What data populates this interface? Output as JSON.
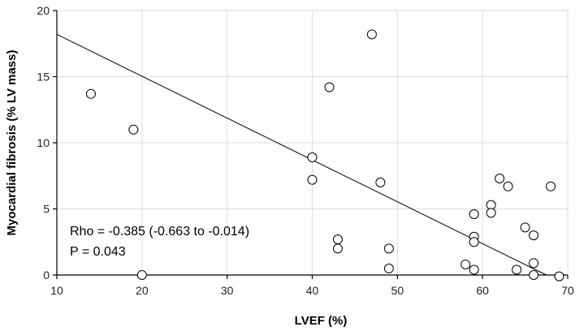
{
  "chart_data": {
    "type": "scatter",
    "title": "",
    "xlabel": "LVEF (%)",
    "ylabel": "Myocardial fibrosis (% LV mass)",
    "xlim": [
      10,
      70
    ],
    "ylim": [
      0,
      20
    ],
    "xticks": [
      10,
      20,
      30,
      40,
      50,
      60,
      70
    ],
    "yticks": [
      0,
      5,
      10,
      15,
      20
    ],
    "grid": true,
    "regression_line": {
      "x": [
        10,
        67.5
      ],
      "y": [
        18.2,
        0
      ]
    },
    "annotations": [
      "Rho = -0.385 (-0.663 to -0.014)",
      "P = 0.043"
    ],
    "points": [
      {
        "x": 14,
        "y": 13.7
      },
      {
        "x": 19,
        "y": 11.0
      },
      {
        "x": 20,
        "y": 0.0
      },
      {
        "x": 40,
        "y": 8.9
      },
      {
        "x": 40,
        "y": 7.2
      },
      {
        "x": 42,
        "y": 14.2
      },
      {
        "x": 43,
        "y": 2.7
      },
      {
        "x": 43,
        "y": 2.0
      },
      {
        "x": 47,
        "y": 18.2
      },
      {
        "x": 48,
        "y": 7.0
      },
      {
        "x": 49,
        "y": 2.0
      },
      {
        "x": 49,
        "y": 0.5
      },
      {
        "x": 58,
        "y": 0.8
      },
      {
        "x": 59,
        "y": 4.6
      },
      {
        "x": 59,
        "y": 2.9
      },
      {
        "x": 59,
        "y": 2.5
      },
      {
        "x": 59,
        "y": 0.4
      },
      {
        "x": 61,
        "y": 5.3
      },
      {
        "x": 61,
        "y": 4.7
      },
      {
        "x": 62,
        "y": 7.3
      },
      {
        "x": 63,
        "y": 6.7
      },
      {
        "x": 64,
        "y": 0.4
      },
      {
        "x": 65,
        "y": 3.6
      },
      {
        "x": 66,
        "y": 3.0
      },
      {
        "x": 66,
        "y": 0.9
      },
      {
        "x": 66,
        "y": 0.0
      },
      {
        "x": 68,
        "y": 6.7
      },
      {
        "x": 69,
        "y": -0.1
      }
    ]
  }
}
